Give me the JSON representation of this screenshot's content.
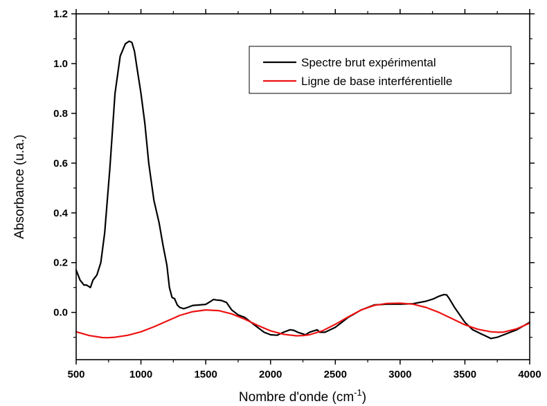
{
  "chart_data": {
    "type": "line",
    "xlabel": "Nombre d'onde (cm",
    "xlabel_sup": "-1",
    "xlabel_suffix": ")",
    "ylabel": "Absorbance (u.a.)",
    "xlim": [
      500,
      4000
    ],
    "ylim": [
      -0.19,
      1.2
    ],
    "x_ticks": [
      500,
      1000,
      1500,
      2000,
      2500,
      3000,
      3500,
      4000
    ],
    "x_tick_labels": [
      "500",
      "1000",
      "1500",
      "2000",
      "2500",
      "3000",
      "3500",
      "4000"
    ],
    "y_ticks": [
      0.0,
      0.2,
      0.4,
      0.6,
      0.8,
      1.0,
      1.2
    ],
    "y_tick_labels": [
      "0.0",
      "0.2",
      "0.4",
      "0.6",
      "0.8",
      "1.0",
      "1.2"
    ],
    "grid": false,
    "legend_position": "top-right",
    "series": [
      {
        "name": "Spectre brut expérimental",
        "color": "#000000",
        "x": [
          500,
          530,
          560,
          580,
          610,
          630,
          660,
          690,
          720,
          760,
          800,
          840,
          880,
          910,
          930,
          950,
          970,
          1000,
          1030,
          1060,
          1100,
          1140,
          1170,
          1200,
          1220,
          1240,
          1260,
          1280,
          1300,
          1330,
          1360,
          1400,
          1450,
          1500,
          1540,
          1560,
          1580,
          1620,
          1660,
          1700,
          1750,
          1800,
          1850,
          1900,
          1950,
          2000,
          2050,
          2100,
          2150,
          2180,
          2210,
          2240,
          2270,
          2300,
          2330,
          2360,
          2380,
          2420,
          2500,
          2600,
          2700,
          2800,
          2900,
          3000,
          3100,
          3200,
          3260,
          3300,
          3340,
          3360,
          3380,
          3420,
          3500,
          3560,
          3620,
          3660,
          3700,
          3750,
          3800,
          3850,
          3900,
          4000
        ],
        "y": [
          0.17,
          0.13,
          0.11,
          0.11,
          0.1,
          0.13,
          0.15,
          0.2,
          0.32,
          0.58,
          0.88,
          1.03,
          1.08,
          1.09,
          1.085,
          1.05,
          0.98,
          0.88,
          0.76,
          0.6,
          0.45,
          0.36,
          0.27,
          0.19,
          0.1,
          0.06,
          0.055,
          0.03,
          0.02,
          0.015,
          0.02,
          0.028,
          0.03,
          0.032,
          0.045,
          0.052,
          0.05,
          0.048,
          0.04,
          0.01,
          -0.01,
          -0.02,
          -0.04,
          -0.06,
          -0.08,
          -0.09,
          -0.092,
          -0.08,
          -0.07,
          -0.072,
          -0.08,
          -0.085,
          -0.09,
          -0.08,
          -0.075,
          -0.07,
          -0.08,
          -0.08,
          -0.06,
          -0.02,
          0.01,
          0.03,
          0.033,
          0.033,
          0.035,
          0.045,
          0.055,
          0.065,
          0.072,
          0.07,
          0.055,
          0.02,
          -0.04,
          -0.07,
          -0.085,
          -0.095,
          -0.105,
          -0.1,
          -0.09,
          -0.08,
          -0.07,
          -0.04
        ]
      },
      {
        "name": "Ligne de base interférentielle",
        "color": "#ee1111",
        "x": [
          500,
          600,
          700,
          740,
          800,
          900,
          1000,
          1100,
          1200,
          1300,
          1400,
          1500,
          1600,
          1700,
          1800,
          1900,
          2000,
          2100,
          2200,
          2250,
          2300,
          2400,
          2500,
          2600,
          2700,
          2800,
          2900,
          3000,
          3100,
          3200,
          3300,
          3400,
          3500,
          3600,
          3700,
          3760,
          3800,
          3900,
          4000
        ],
        "y": [
          -0.078,
          -0.093,
          -0.101,
          -0.102,
          -0.1,
          -0.092,
          -0.078,
          -0.058,
          -0.035,
          -0.012,
          0.003,
          0.01,
          0.007,
          -0.006,
          -0.027,
          -0.052,
          -0.074,
          -0.088,
          -0.094,
          -0.093,
          -0.09,
          -0.074,
          -0.048,
          -0.018,
          0.01,
          0.028,
          0.036,
          0.037,
          0.033,
          0.02,
          0.0,
          -0.025,
          -0.05,
          -0.068,
          -0.078,
          -0.08,
          -0.079,
          -0.066,
          -0.043
        ]
      }
    ]
  }
}
